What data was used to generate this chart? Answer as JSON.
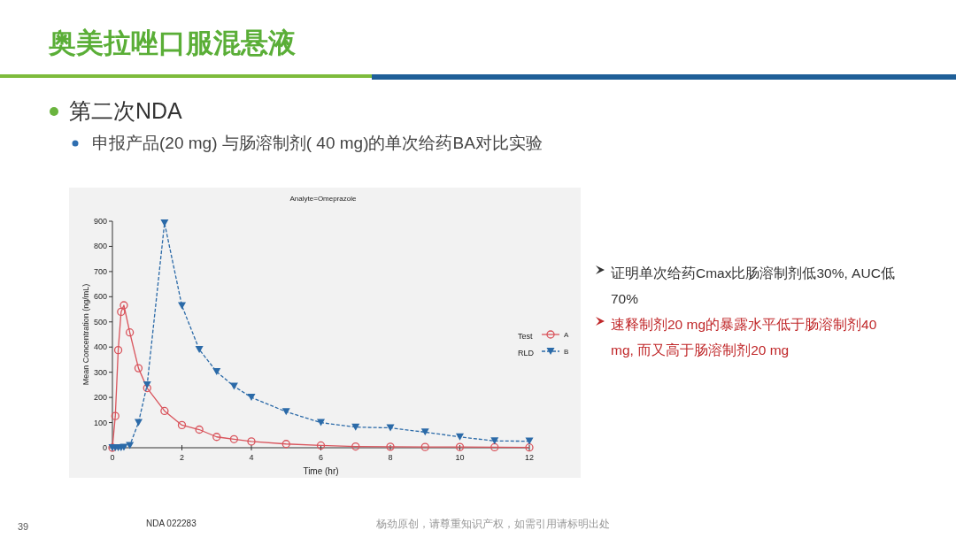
{
  "chart_data": {
    "type": "line",
    "title": "奥美拉唑口服混悬液",
    "subtitle": "Analyte=Omeprazole",
    "xlabel": "Time (hr)",
    "ylabel": "Mean Concentration (ng/mL)",
    "xlim": [
      0,
      12
    ],
    "xticks": [
      0,
      2,
      4,
      6,
      8,
      10,
      12
    ],
    "ylim": [
      0,
      900
    ],
    "yticks": [
      0,
      100,
      200,
      300,
      400,
      500,
      600,
      700,
      800,
      900
    ],
    "grid": false,
    "legend": "right",
    "x": [
      0,
      0.083,
      0.167,
      0.25,
      0.33,
      0.5,
      0.75,
      1,
      1.5,
      2,
      2.5,
      3,
      3.5,
      4,
      5,
      6,
      7,
      8,
      9,
      10,
      11,
      12
    ],
    "series": [
      {
        "name": "A",
        "color": "#d9545c",
        "marker": "circle",
        "line_style": "solid",
        "values": [
          0,
          126,
          388,
          540,
          566,
          458,
          316,
          237,
          146,
          90,
          72,
          43,
          34,
          25,
          15,
          9,
          5,
          4,
          3,
          3,
          2,
          1
        ]
      },
      {
        "name": "B",
        "color": "#2b6aa8",
        "marker": "triangle",
        "line_style": "dashed",
        "values": [
          0,
          0,
          0,
          0,
          2,
          9,
          100,
          250,
          893,
          564,
          390,
          302,
          244,
          200,
          143,
          100,
          82,
          79,
          62,
          43,
          27,
          26
        ]
      }
    ],
    "annotations": [
      "第二次NDA",
      "申报产品(20 mg) 与肠溶制剂( 40 mg)的单次给药BA对比实验",
      "证明单次给药Cmax比肠溶制剂低30%, AUC低70%",
      "速释制剂20 mg的暴露水平低于肠溶制剂40 mg, 而又高于肠溶制剂20 mg",
      "Test",
      "RLD",
      "39",
      "NDA 022283",
      "杨劲原创，请尊重知识产权，如需引用请标明出处"
    ]
  }
}
